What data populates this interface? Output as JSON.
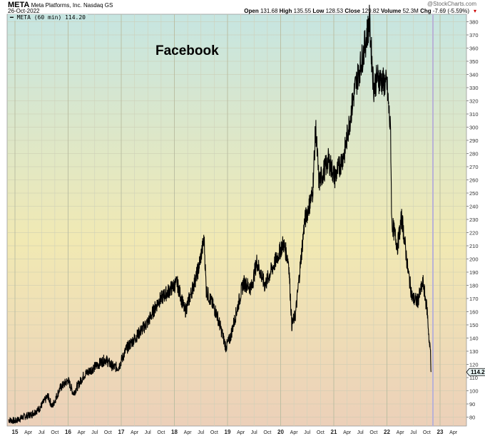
{
  "header": {
    "symbol": "META",
    "company": "Meta Platforms, Inc.",
    "exchange": "Nasdaq GS",
    "date": "26-Oct-2022",
    "copyright": "@StockCharts.com",
    "open_label": "Open",
    "open": "131.68",
    "high_label": "High",
    "high": "135.55",
    "low_label": "Low",
    "low": "128.53",
    "close_label": "Close",
    "close": "129.82",
    "volume_label": "Volume",
    "volume": "52.3M",
    "chg_label": "Chg",
    "chg": "-7.69 (-5.59%)"
  },
  "legend": "META (60 min) 114.20",
  "annotation": "Facebook",
  "colors": {
    "line": "#000000",
    "top": "#c6e5e1",
    "mid": "#f1e9b3",
    "bottom": "#ecd0b9",
    "marker": "#b9b2d6"
  },
  "chart_data": {
    "type": "line",
    "title": "Facebook",
    "last_value_tag": "114.20",
    "ylim": [
      70,
      385
    ],
    "yticks": [
      80,
      90,
      100,
      110,
      120,
      130,
      140,
      150,
      160,
      170,
      180,
      190,
      200,
      210,
      220,
      230,
      240,
      250,
      260,
      270,
      280,
      290,
      300,
      310,
      320,
      330,
      340,
      350,
      360,
      370,
      380
    ],
    "xlim": [
      2014.87,
      2023.35
    ],
    "xticks": [
      {
        "v": 2015.0,
        "l": "15",
        "major": true
      },
      {
        "v": 2015.25,
        "l": "Apr"
      },
      {
        "v": 2015.5,
        "l": "Jul"
      },
      {
        "v": 2015.75,
        "l": "Oct"
      },
      {
        "v": 2016.0,
        "l": "16",
        "major": true
      },
      {
        "v": 2016.25,
        "l": "Apr"
      },
      {
        "v": 2016.5,
        "l": "Jul"
      },
      {
        "v": 2016.75,
        "l": "Oct"
      },
      {
        "v": 2017.0,
        "l": "17",
        "major": true
      },
      {
        "v": 2017.25,
        "l": "Apr"
      },
      {
        "v": 2017.5,
        "l": "Jul"
      },
      {
        "v": 2017.75,
        "l": "Oct"
      },
      {
        "v": 2018.0,
        "l": "18",
        "major": true
      },
      {
        "v": 2018.25,
        "l": "Apr"
      },
      {
        "v": 2018.5,
        "l": "Jul"
      },
      {
        "v": 2018.75,
        "l": "Oct"
      },
      {
        "v": 2019.0,
        "l": "19",
        "major": true
      },
      {
        "v": 2019.25,
        "l": "Apr"
      },
      {
        "v": 2019.5,
        "l": "Jul"
      },
      {
        "v": 2019.75,
        "l": "Oct"
      },
      {
        "v": 2020.0,
        "l": "20",
        "major": true
      },
      {
        "v": 2020.25,
        "l": "Apr"
      },
      {
        "v": 2020.5,
        "l": "Jul"
      },
      {
        "v": 2020.75,
        "l": "Oct"
      },
      {
        "v": 2021.0,
        "l": "21",
        "major": true
      },
      {
        "v": 2021.25,
        "l": "Apr"
      },
      {
        "v": 2021.5,
        "l": "Jul"
      },
      {
        "v": 2021.75,
        "l": "Oct"
      },
      {
        "v": 2022.0,
        "l": "22",
        "major": true
      },
      {
        "v": 2022.25,
        "l": "Apr"
      },
      {
        "v": 2022.5,
        "l": "Jul"
      },
      {
        "v": 2022.75,
        "l": "Oct"
      },
      {
        "v": 2023.0,
        "l": "23",
        "major": true
      },
      {
        "v": 2023.25,
        "l": "Apr"
      }
    ],
    "series": [
      {
        "name": "META (60 min)",
        "x": [
          2014.88,
          2015.0,
          2015.15,
          2015.3,
          2015.45,
          2015.55,
          2015.62,
          2015.7,
          2015.85,
          2016.0,
          2016.1,
          2016.3,
          2016.5,
          2016.7,
          2016.85,
          2016.95,
          2017.1,
          2017.3,
          2017.5,
          2017.7,
          2017.9,
          2018.05,
          2018.2,
          2018.3,
          2018.45,
          2018.56,
          2018.6,
          2018.8,
          2018.97,
          2019.05,
          2019.3,
          2019.45,
          2019.55,
          2019.7,
          2019.9,
          2020.05,
          2020.15,
          2020.21,
          2020.28,
          2020.45,
          2020.6,
          2020.66,
          2020.72,
          2020.9,
          2021.02,
          2021.2,
          2021.4,
          2021.55,
          2021.67,
          2021.75,
          2021.82,
          2021.9,
          2022.0,
          2022.07,
          2022.09,
          2022.2,
          2022.28,
          2022.4,
          2022.48,
          2022.58,
          2022.68,
          2022.76,
          2022.8,
          2022.82,
          2022.83
        ],
        "y": [
          78,
          77,
          80,
          82,
          86,
          92,
          96,
          88,
          102,
          108,
          98,
          112,
          118,
          124,
          118,
          118,
          132,
          142,
          152,
          168,
          176,
          182,
          160,
          172,
          192,
          215,
          176,
          158,
          133,
          140,
          182,
          178,
          198,
          180,
          198,
          212,
          198,
          150,
          158,
          228,
          250,
          300,
          258,
          275,
          262,
          280,
          330,
          355,
          380,
          330,
          338,
          335,
          332,
          295,
          228,
          210,
          232,
          190,
          170,
          168,
          182,
          160,
          135,
          130,
          114.2
        ]
      }
    ]
  }
}
